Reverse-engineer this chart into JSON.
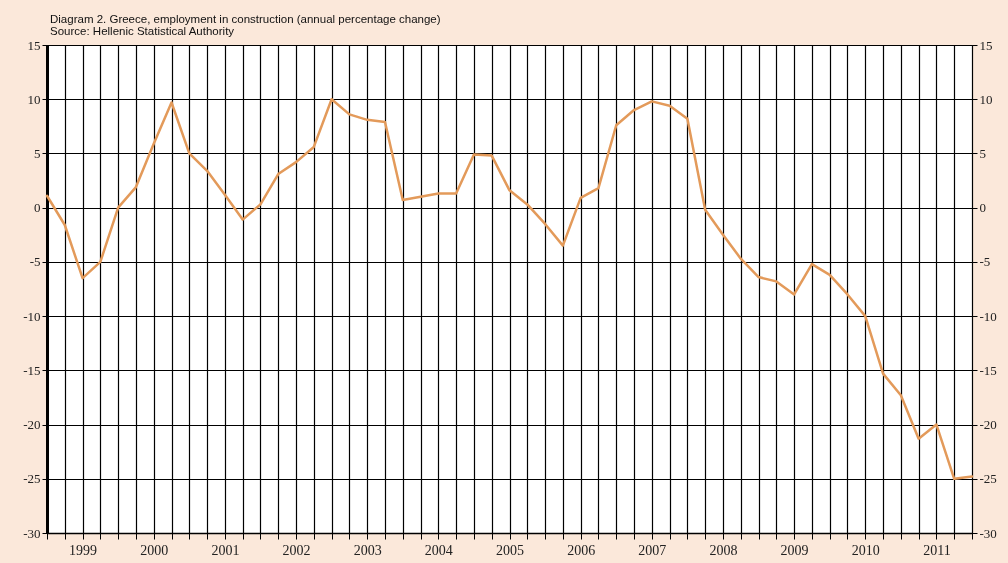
{
  "chart_data": {
    "type": "line",
    "title": "Diagram 2. Greece, employment in construction (annual percentage change)",
    "annotations": [
      "Source: Hellenic Statistical Authority"
    ],
    "x": [
      1999,
      1999.25,
      1999.5,
      1999.75,
      2000,
      2000.25,
      2000.5,
      2000.75,
      2001,
      2001.25,
      2001.5,
      2001.75,
      2002,
      2002.25,
      2002.5,
      2002.75,
      2003,
      2003.25,
      2003.5,
      2003.75,
      2004,
      2004.25,
      2004.5,
      2004.75,
      2005,
      2005.25,
      2005.5,
      2005.75,
      2006,
      2006.25,
      2006.5,
      2006.75,
      2007,
      2007.25,
      2007.5,
      2007.75,
      2008,
      2008.25,
      2008.5,
      2008.75,
      2009,
      2009.25,
      2009.5,
      2009.75,
      2010,
      2010.25,
      2010.5,
      2010.75,
      2011,
      2011.25,
      2011.5,
      2011.75,
      2012
    ],
    "series": [
      {
        "color": "#e39a5a",
        "values": [
          1.1,
          -1.6,
          -6.5,
          -5.0,
          0,
          1.9,
          5.9,
          9.7,
          5.0,
          3.4,
          1.2,
          -1.1,
          0.3,
          3.1,
          4.2,
          5.6,
          10,
          8.6,
          8.1,
          7.9,
          0.7,
          1.0,
          1.3,
          1.3,
          4.9,
          4.8,
          1.6,
          0.3,
          -1.5,
          -3.5,
          0.9,
          1.8,
          7.6,
          9.0,
          9.8,
          9.4,
          8.2,
          -0.2,
          -2.5,
          -4.7,
          -6.4,
          -6.8,
          -8.0,
          -5.2,
          -6.2,
          -8.0,
          -10.0,
          -15.3,
          -17.3,
          -21.3,
          -20.0,
          -25.0,
          -24.8
        ]
      }
    ],
    "xlim": [
      1999,
      2012
    ],
    "xticks": [
      {
        "value": 1999,
        "label": null
      },
      {
        "value": 1999.25,
        "label": null
      },
      {
        "value": 1999.5,
        "label": "1999"
      },
      {
        "value": 1999.75,
        "label": null
      },
      {
        "value": 2000,
        "label": null
      },
      {
        "value": 2000.25,
        "label": null
      },
      {
        "value": 2000.5,
        "label": "2000"
      },
      {
        "value": 2000.75,
        "label": null
      },
      {
        "value": 2001,
        "label": null
      },
      {
        "value": 2001.25,
        "label": null
      },
      {
        "value": 2001.5,
        "label": "2001"
      },
      {
        "value": 2001.75,
        "label": null
      },
      {
        "value": 2002,
        "label": null
      },
      {
        "value": 2002.25,
        "label": null
      },
      {
        "value": 2002.5,
        "label": "2002"
      },
      {
        "value": 2002.75,
        "label": null
      },
      {
        "value": 2003,
        "label": null
      },
      {
        "value": 2003.25,
        "label": null
      },
      {
        "value": 2003.5,
        "label": "2003"
      },
      {
        "value": 2003.75,
        "label": null
      },
      {
        "value": 2004,
        "label": null
      },
      {
        "value": 2004.25,
        "label": null
      },
      {
        "value": 2004.5,
        "label": "2004"
      },
      {
        "value": 2004.75,
        "label": null
      },
      {
        "value": 2005,
        "label": null
      },
      {
        "value": 2005.25,
        "label": null
      },
      {
        "value": 2005.5,
        "label": "2005"
      },
      {
        "value": 2005.75,
        "label": null
      },
      {
        "value": 2006,
        "label": null
      },
      {
        "value": 2006.25,
        "label": null
      },
      {
        "value": 2006.5,
        "label": "2006"
      },
      {
        "value": 2006.75,
        "label": null
      },
      {
        "value": 2007,
        "label": null
      },
      {
        "value": 2007.25,
        "label": null
      },
      {
        "value": 2007.5,
        "label": "2007"
      },
      {
        "value": 2007.75,
        "label": null
      },
      {
        "value": 2008,
        "label": null
      },
      {
        "value": 2008.25,
        "label": null
      },
      {
        "value": 2008.5,
        "label": "2008"
      },
      {
        "value": 2008.75,
        "label": null
      },
      {
        "value": 2009,
        "label": null
      },
      {
        "value": 2009.25,
        "label": null
      },
      {
        "value": 2009.5,
        "label": "2009"
      },
      {
        "value": 2009.75,
        "label": null
      },
      {
        "value": 2010,
        "label": null
      },
      {
        "value": 2010.25,
        "label": null
      },
      {
        "value": 2010.5,
        "label": "2010"
      },
      {
        "value": 2010.75,
        "label": null
      },
      {
        "value": 2011,
        "label": null
      },
      {
        "value": 2011.25,
        "label": null
      },
      {
        "value": 2011.5,
        "label": "2011"
      },
      {
        "value": 2011.75,
        "label": null
      },
      {
        "value": 2012,
        "label": null
      }
    ],
    "ylim": [
      -30,
      15
    ],
    "yticks": [
      -30,
      -25,
      -20,
      -15,
      -10,
      -5,
      0,
      5,
      10,
      15
    ],
    "y2lim": [
      -30,
      15
    ],
    "y2ticks": [
      -30,
      -25,
      -20,
      -15,
      -10,
      -5,
      0,
      5,
      10,
      15
    ],
    "grid": true,
    "marker": "none",
    "line_style": "solid"
  }
}
